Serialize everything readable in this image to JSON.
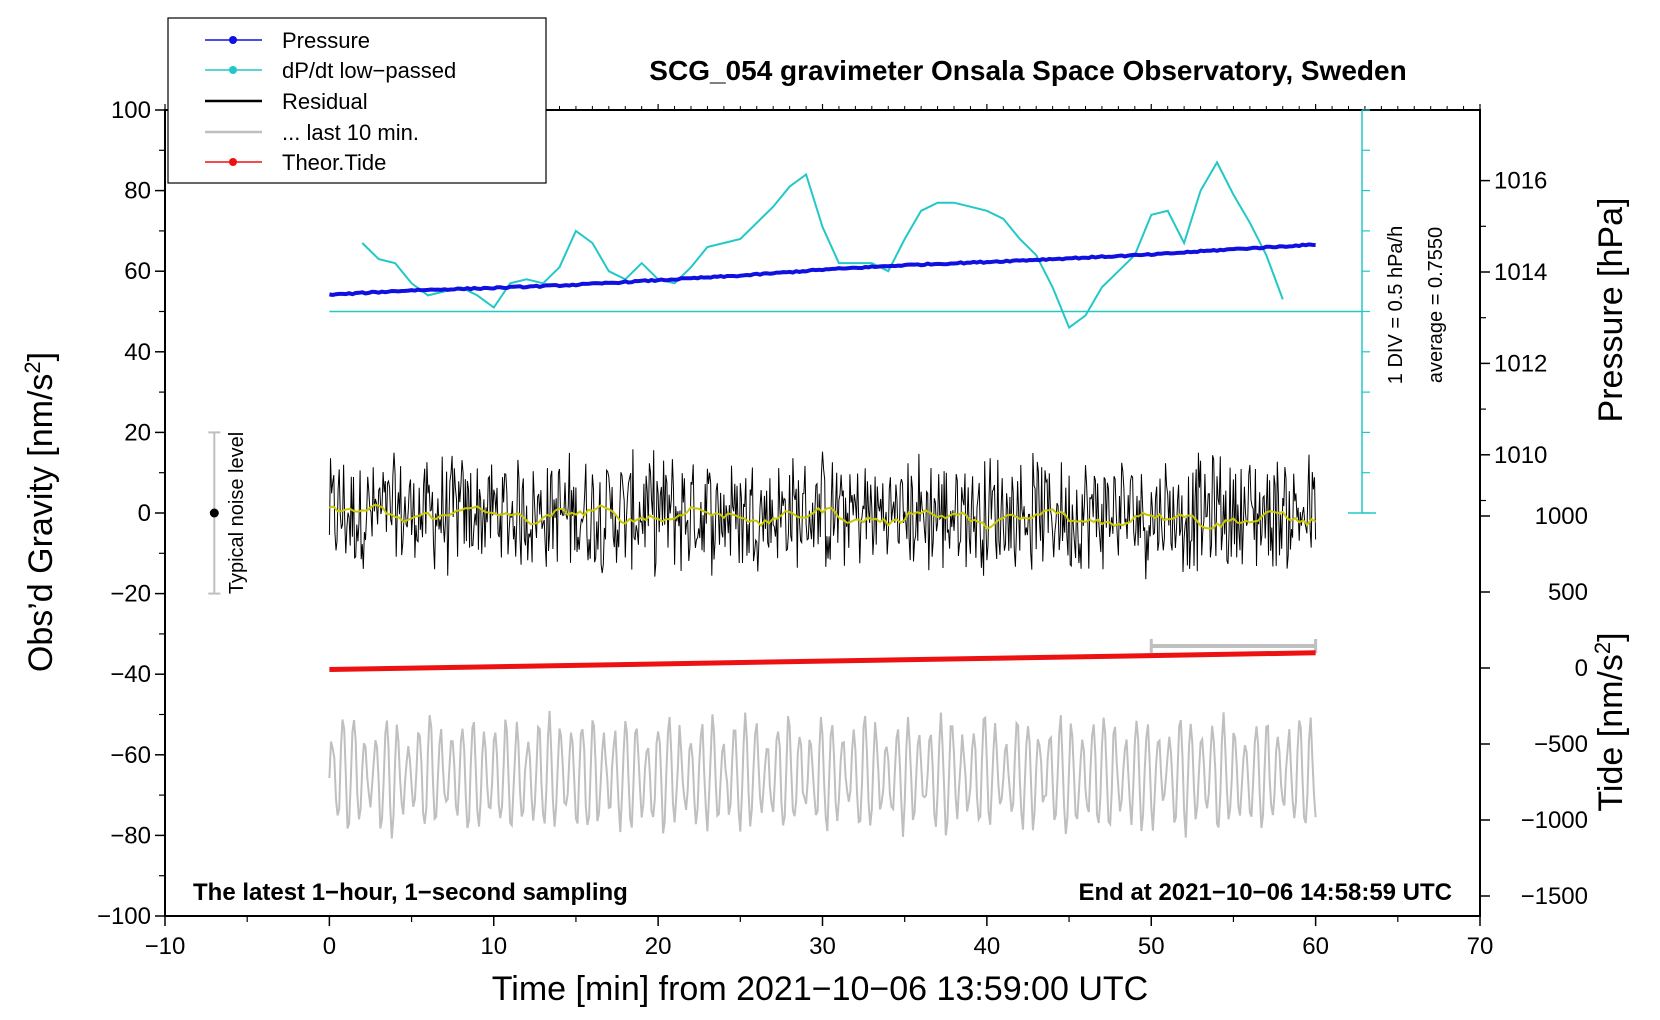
{
  "chart_data": {
    "type": "line",
    "title": "SCG_054 gravimeter Onsala Space Observatory, Sweden",
    "xlabel": "Time [min] from 2021−10−06 13:59:00 UTC",
    "xlim": [
      -10,
      70
    ],
    "xticks": [
      "−10",
      "0",
      "10",
      "20",
      "30",
      "40",
      "50",
      "60",
      "70"
    ],
    "ylabel_left": "Obs’d Gravity [nm/s",
    "ylabel_left_sup": "2",
    "ylabel_left_end": "]",
    "ylim_left": [
      -100,
      100
    ],
    "yticks_left": [
      "−100",
      "−80",
      "−60",
      "−40",
      "−20",
      "0",
      "20",
      "40",
      "60",
      "80",
      "100"
    ],
    "ylabel_pressure": "Pressure [hPa]",
    "pressure_ticks": [
      {
        "value": 1016,
        "label": "1016"
      },
      {
        "value": 1014,
        "label": "1014"
      },
      {
        "value": 1012,
        "label": "1012"
      },
      {
        "value": 1010,
        "label": "1010"
      }
    ],
    "ylabel_tide": "Tide [nm/s",
    "ylabel_tide_sup": "2",
    "ylabel_tide_end": "]",
    "tide_ticks": [
      {
        "value": 1000,
        "label": "1000"
      },
      {
        "value": 500,
        "label": "500"
      },
      {
        "value": 0,
        "label": "0"
      },
      {
        "value": -500,
        "label": "−500"
      },
      {
        "value": -1000,
        "label": "−1000"
      },
      {
        "value": -1500,
        "label": "−1500"
      }
    ],
    "legend": [
      {
        "label": "Pressure",
        "color": "#1010e0",
        "marker": true
      },
      {
        "label": "dP/dt low−passed",
        "color": "#22c8c8",
        "marker": true
      },
      {
        "label": "Residual",
        "color": "#000000",
        "marker": false
      },
      {
        "label": "... last 10 min.",
        "color": "#bfbfbf",
        "marker": false
      },
      {
        "label": "Theor.Tide",
        "color": "#ee1111",
        "marker": true
      }
    ],
    "colors": {
      "pressure": "#1010e0",
      "dpdt": "#22c8c8",
      "residual": "#000000",
      "residual_smooth": "#c8c800",
      "last10": "#bfbfbf",
      "tide": "#ee1111"
    },
    "series": [
      {
        "name": "Pressure",
        "unit": "hPa",
        "x": [
          0,
          5,
          10,
          15,
          20,
          25,
          30,
          35,
          40,
          45,
          50,
          55,
          60
        ],
        "values": [
          1013.5,
          1013.6,
          1013.65,
          1013.72,
          1013.82,
          1013.92,
          1014.05,
          1014.15,
          1014.22,
          1014.3,
          1014.38,
          1014.5,
          1014.6
        ]
      },
      {
        "name": "dP/dt low−passed",
        "unit": "gravity-axis units",
        "x": [
          2,
          3,
          4,
          5,
          6,
          7,
          8,
          9,
          10,
          11,
          12,
          13,
          14,
          15,
          16,
          17,
          18,
          19,
          20,
          21,
          22,
          23,
          24,
          25,
          26,
          27,
          28,
          29,
          30,
          31,
          32,
          33,
          34,
          35,
          36,
          37,
          38,
          39,
          40,
          41,
          42,
          43,
          44,
          45,
          46,
          47,
          48,
          49,
          50,
          51,
          52,
          53,
          54,
          55,
          56,
          57,
          58
        ],
        "values": [
          67,
          63,
          62,
          57,
          54,
          55,
          56,
          54,
          51,
          57,
          58,
          57,
          61,
          70,
          67,
          60,
          58,
          62,
          58,
          57,
          61,
          66,
          67,
          68,
          72,
          76,
          81,
          84,
          71,
          62,
          62,
          62,
          60,
          68,
          75,
          77,
          77,
          76,
          75,
          73,
          68,
          64,
          56,
          46,
          49,
          56,
          60,
          64,
          74,
          75,
          67,
          80,
          87,
          79,
          72,
          64,
          53
        ]
      },
      {
        "name": "Residual",
        "unit": "nm/s2",
        "x_range": [
          0,
          60
        ],
        "amplitude": 14,
        "mean": 0
      },
      {
        "name": "... last 10 min.",
        "unit": "nm/s2 (offset)",
        "x_range": [
          0,
          60
        ],
        "mean": -65,
        "amplitude": 14
      },
      {
        "name": "Theor.Tide",
        "unit": "nm/s2",
        "x": [
          0,
          60
        ],
        "values": [
          -10,
          100
        ]
      }
    ],
    "baseline_dpdt": 50,
    "scale_bar_label_1": "1 DIV = 0.5 hPa/h",
    "scale_bar_label_2": "average = 0.7550",
    "noise_label": "Typical noise level",
    "noise_range": [
      -20,
      20
    ],
    "noise_x": -7,
    "last10_bracket_x": [
      50,
      60
    ],
    "footer_left": "The latest 1−hour, 1−second sampling",
    "footer_right": "End at 2021−10−06 14:58:59 UTC"
  }
}
